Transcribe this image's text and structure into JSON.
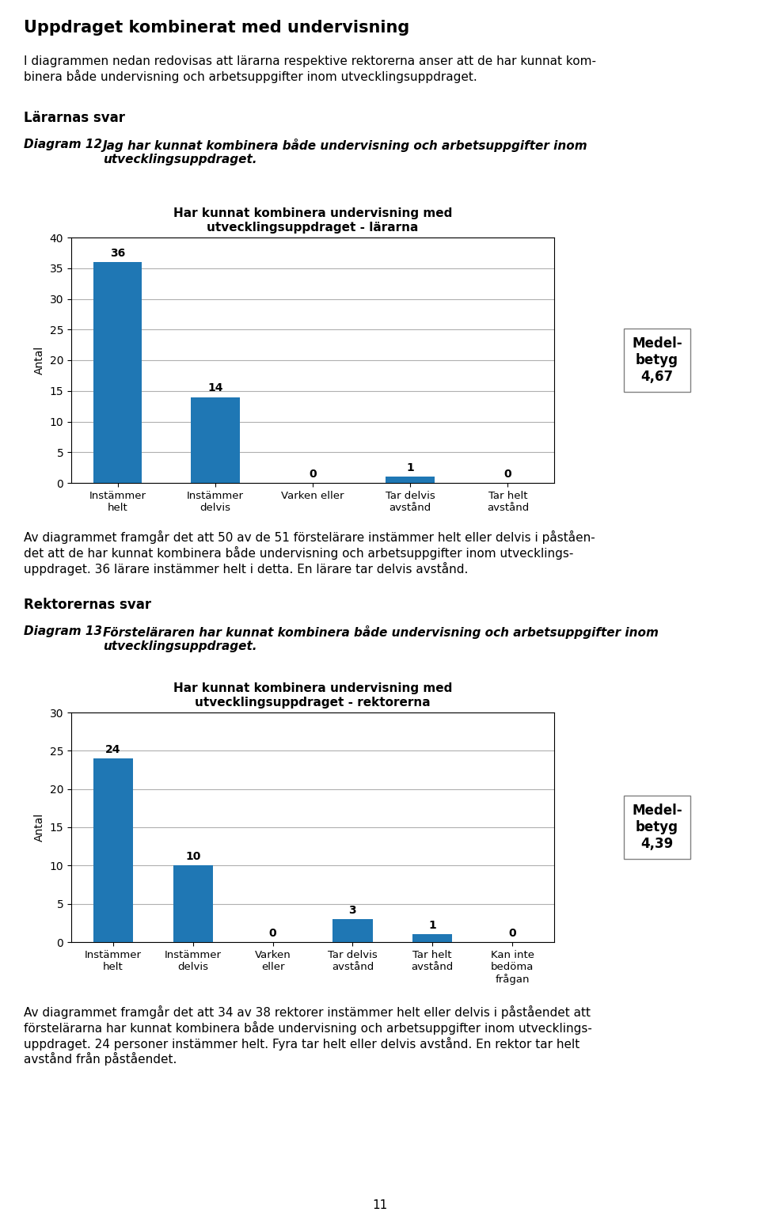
{
  "title": "Uppdraget kombinerat med undervisning",
  "subtitle": "I diagrammen nedan redovisas att lärarna respektive rektorerna anser att de har kunnat kom-\nbinera både undervisning och arbetsuppgifter inom utvecklingsuppdraget.",
  "annotations": [
    "11"
  ],
  "chart_data": [
    {
      "type": "bar",
      "title": "Har kunnat kombinera undervisning med\nutvecklingsuppdraget - lärarna",
      "ylabel": "Antal",
      "categories": [
        "Instämmer\nhelt",
        "Instämmer\ndelvis",
        "Varken eller",
        "Tar delvis\navstånd",
        "Tar helt\navstånd"
      ],
      "values": [
        36,
        14,
        0,
        1,
        0
      ],
      "ylim": [
        0,
        40
      ],
      "yticks": [
        0,
        5,
        10,
        15,
        20,
        25,
        30,
        35,
        40
      ],
      "grid": true,
      "data_labels": true,
      "annotations": [
        "Lärarnas svar",
        "Diagram 12",
        "Jag har kunnat kombinera både undervisning och arbetsuppgifter inom\nutvecklingsuppdraget.",
        "Medel-\nbetyg\n4,67",
        "Av diagrammet framgår det att 50 av de 51 förstelärare instämmer helt eller delvis i påståen-\ndet att de har kunnat kombinera både undervisning och arbetsuppgifter inom utvecklings-\nuppdraget. 36 lärare instämmer helt i detta. En lärare tar delvis avstånd."
      ]
    },
    {
      "type": "bar",
      "title": "Har kunnat kombinera undervisning med\nutvecklingsuppdraget - rektorerna",
      "ylabel": "Antal",
      "categories": [
        "Instämmer\nhelt",
        "Instämmer\ndelvis",
        "Varken\neller",
        "Tar delvis\navstånd",
        "Tar helt\navstånd",
        "Kan inte\nbedöma\nfrågan"
      ],
      "values": [
        24,
        10,
        0,
        3,
        1,
        0
      ],
      "ylim": [
        0,
        30
      ],
      "yticks": [
        0,
        5,
        10,
        15,
        20,
        25,
        30
      ],
      "grid": true,
      "data_labels": true,
      "annotations": [
        "Rektorernas svar",
        "Diagram 13",
        "Försteläraren har kunnat kombinera både undervisning och arbetsuppgifter inom\nutvecklingsuppdraget.",
        "Medel-\nbetyg\n4,39",
        "Av diagrammet framgår det att 34 av 38 rektorer instämmer helt eller delvis i påståendet att\nförstelärarna har kunnat kombinera både undervisning och arbetsuppgifter inom utvecklings-\nuppdraget. 24 personer instämmer helt. Fyra tar helt eller delvis avstånd. En rektor tar helt\navstånd från påståendet."
      ]
    }
  ]
}
